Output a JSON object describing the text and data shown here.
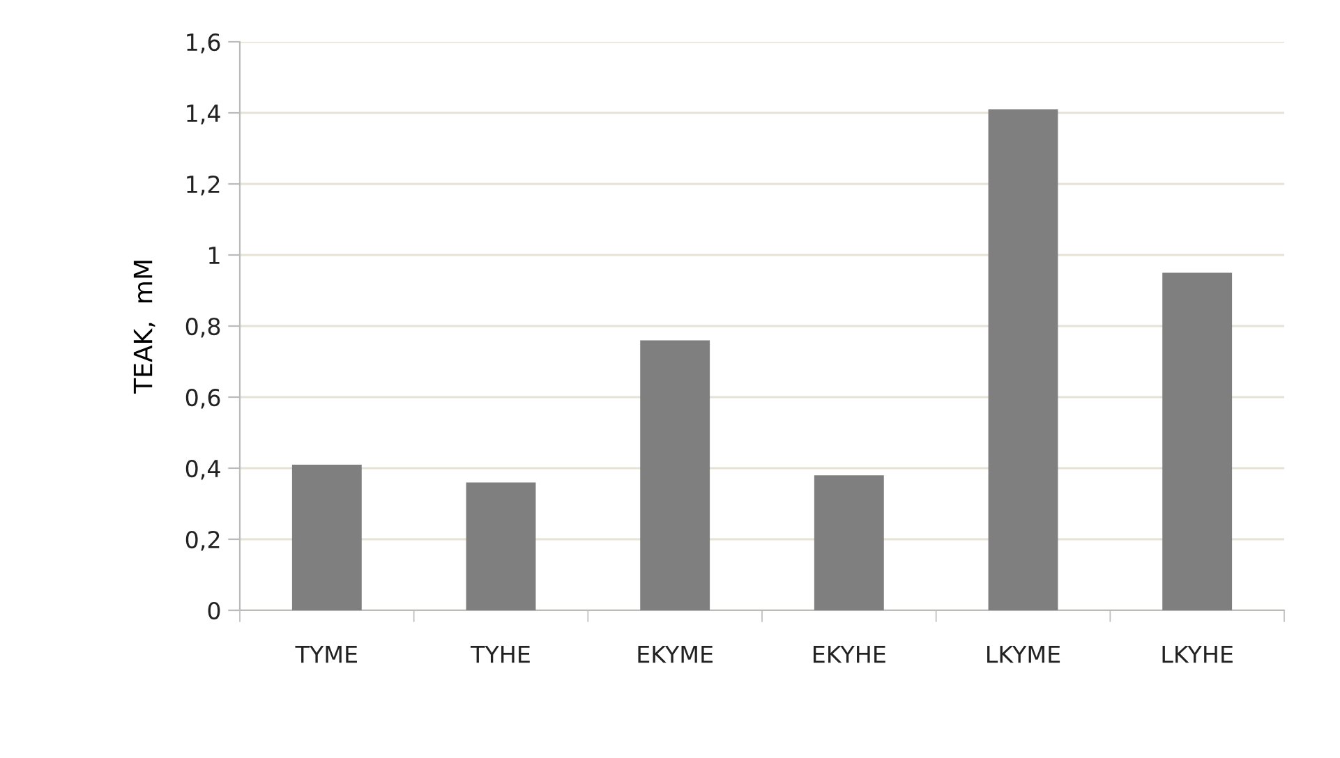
{
  "chart_data": {
    "type": "bar",
    "ylabel": "TEAK,  mM",
    "categories": [
      "TYME",
      "TYHE",
      "EKYME",
      "EKYHE",
      "LKYME",
      "LKYHE"
    ],
    "values": [
      0.41,
      0.36,
      0.76,
      0.38,
      1.41,
      0.95
    ],
    "color": "#7f7f7f",
    "ylim": [
      0,
      1.6
    ],
    "yticks": [
      {
        "value": 0,
        "label": "0"
      },
      {
        "value": 0.2,
        "label": "0,2"
      },
      {
        "value": 0.4,
        "label": "0,4"
      },
      {
        "value": 0.6,
        "label": "0,6"
      },
      {
        "value": 0.8,
        "label": "0,8"
      },
      {
        "value": 1,
        "label": "1"
      },
      {
        "value": 1.2,
        "label": "1,2"
      },
      {
        "value": 1.4,
        "label": "1,4"
      },
      {
        "value": 1.6,
        "label": "1,6"
      }
    ],
    "grid": "y",
    "legend": false
  }
}
